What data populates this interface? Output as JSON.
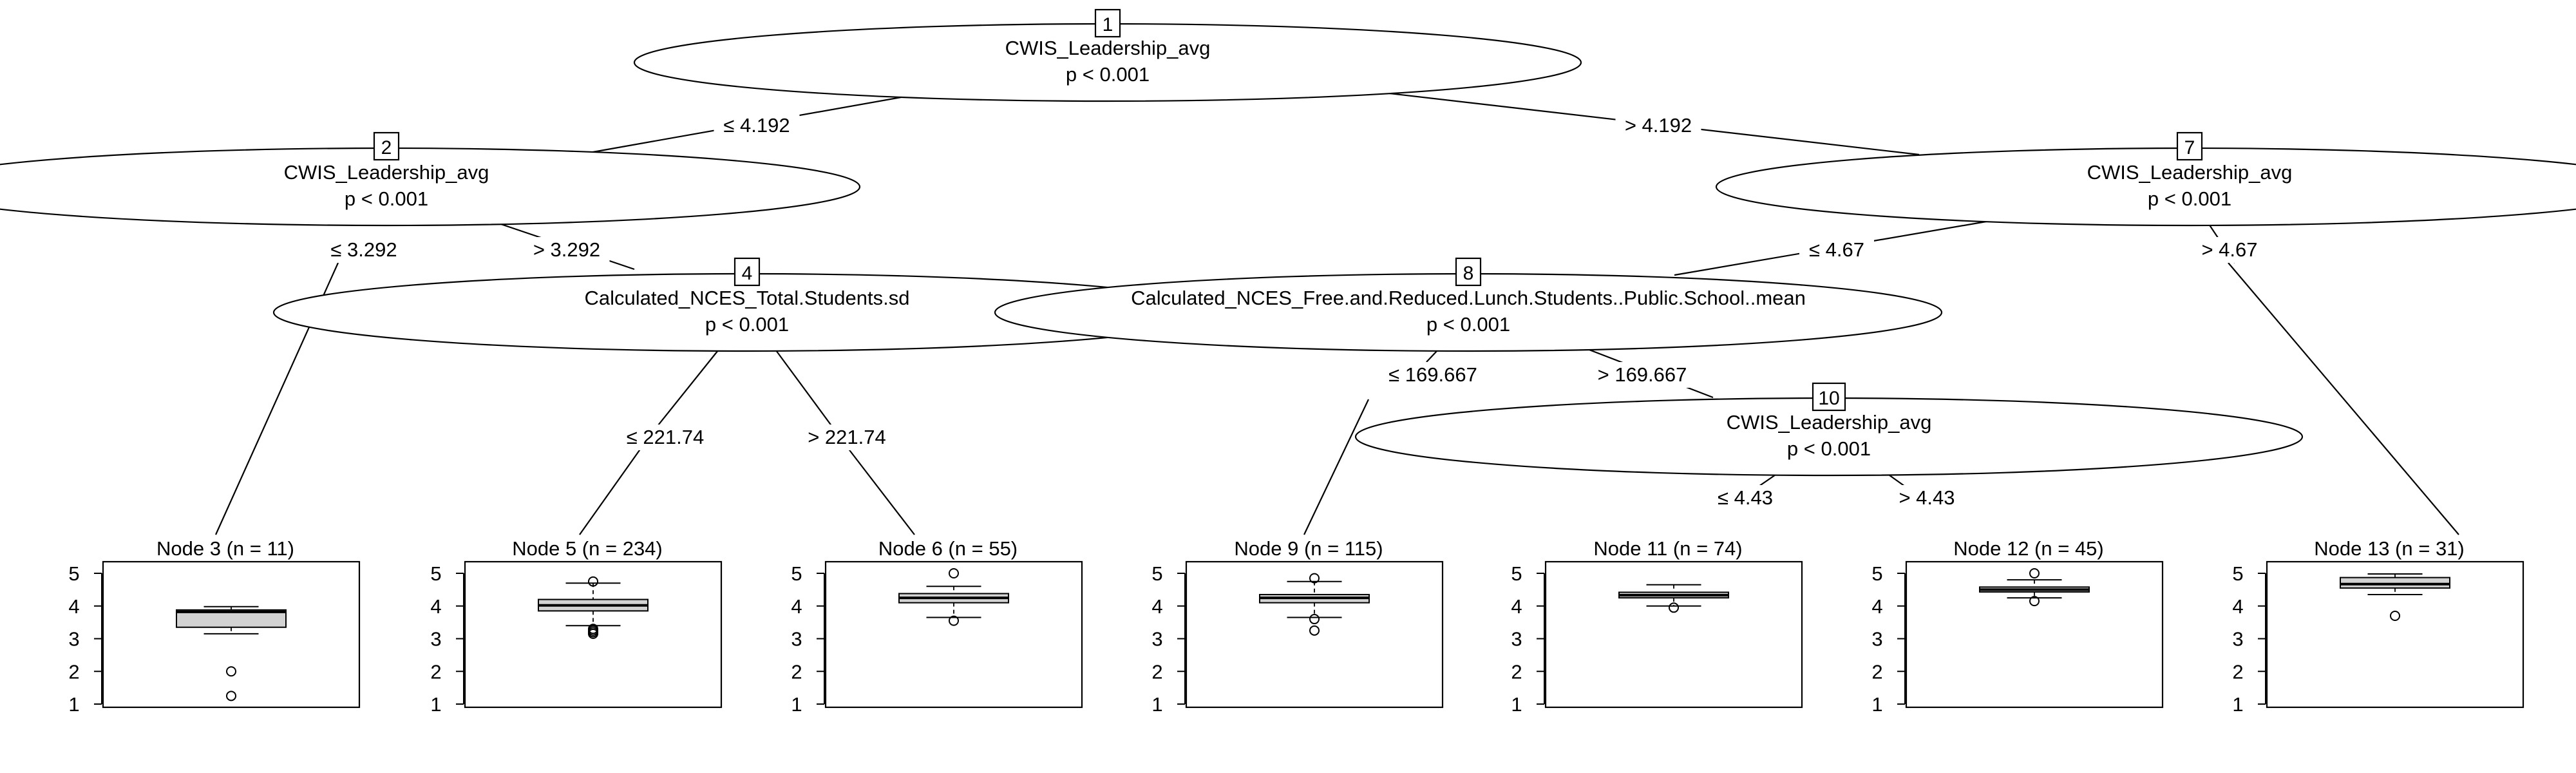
{
  "tree": {
    "inner_nodes": [
      {
        "id": "1",
        "id_label": "1",
        "variable": "CWIS_Leadership_avg",
        "p_value": "p < 0.001"
      },
      {
        "id": "2",
        "id_label": "2",
        "variable": "CWIS_Leadership_avg",
        "p_value": "p < 0.001"
      },
      {
        "id": "4",
        "id_label": "4",
        "variable": "Calculated_NCES_Total.Students.sd",
        "p_value": "p < 0.001"
      },
      {
        "id": "7",
        "id_label": "7",
        "variable": "CWIS_Leadership_avg",
        "p_value": "p < 0.001"
      },
      {
        "id": "8",
        "id_label": "8",
        "variable": "Calculated_NCES_Free.and.Reduced.Lunch.Students..Public.School..mean",
        "p_value": "p < 0.001"
      },
      {
        "id": "10",
        "id_label": "10",
        "variable": "CWIS_Leadership_avg",
        "p_value": "p < 0.001"
      }
    ],
    "edges": [
      {
        "id": "e1-2",
        "label": "≤ 4.192"
      },
      {
        "id": "e1-7",
        "label": "> 4.192"
      },
      {
        "id": "e2-3",
        "label": "≤ 3.292"
      },
      {
        "id": "e2-4",
        "label": "> 3.292"
      },
      {
        "id": "e4-5",
        "label": "≤ 221.74"
      },
      {
        "id": "e4-6",
        "label": "> 221.74"
      },
      {
        "id": "e7-8",
        "label": "≤ 4.67"
      },
      {
        "id": "e7-13",
        "label": "> 4.67"
      },
      {
        "id": "e8-9",
        "label": "≤ 169.667"
      },
      {
        "id": "e8-10",
        "label": "> 169.667"
      },
      {
        "id": "e10-11",
        "label": "≤ 4.43"
      },
      {
        "id": "e10-12",
        "label": "> 4.43"
      }
    ],
    "terminal_nodes": [
      {
        "id": "3",
        "title": "Node 3 (n = 11)",
        "box": {
          "min": 3.15,
          "q1": 3.35,
          "median": 3.82,
          "q3": 3.88,
          "max": 3.98
        },
        "outliers": [
          2.0,
          1.25
        ]
      },
      {
        "id": "5",
        "title": "Node 5 (n = 234)",
        "box": {
          "min": 3.4,
          "q1": 3.85,
          "median": 4.02,
          "q3": 4.2,
          "max": 4.7
        },
        "outliers": [
          4.75,
          3.3,
          3.25,
          3.2,
          3.15
        ]
      },
      {
        "id": "6",
        "title": "Node 6 (n = 55)",
        "box": {
          "min": 3.65,
          "q1": 4.1,
          "median": 4.25,
          "q3": 4.38,
          "max": 4.6
        },
        "outliers": [
          5.0,
          3.55
        ]
      },
      {
        "id": "9",
        "title": "Node 9 (n = 115)",
        "box": {
          "min": 3.65,
          "q1": 4.1,
          "median": 4.25,
          "q3": 4.35,
          "max": 4.75
        },
        "outliers": [
          4.85,
          3.6,
          3.25
        ]
      },
      {
        "id": "11",
        "title": "Node 11 (n = 74)",
        "box": {
          "min": 4.0,
          "q1": 4.25,
          "median": 4.33,
          "q3": 4.42,
          "max": 4.65
        },
        "outliers": [
          3.95
        ]
      },
      {
        "id": "12",
        "title": "Node 12 (n = 45)",
        "box": {
          "min": 4.25,
          "q1": 4.43,
          "median": 4.5,
          "q3": 4.58,
          "max": 4.8
        },
        "outliers": [
          5.0,
          4.15
        ]
      },
      {
        "id": "13",
        "title": "Node 13 (n = 31)",
        "box": {
          "min": 4.35,
          "q1": 4.55,
          "median": 4.67,
          "q3": 4.87,
          "max": 4.98
        },
        "outliers": [
          3.7
        ]
      }
    ],
    "y_axis_ticks": [
      "1",
      "2",
      "3",
      "4",
      "5"
    ],
    "y_range": [
      1,
      5
    ]
  }
}
